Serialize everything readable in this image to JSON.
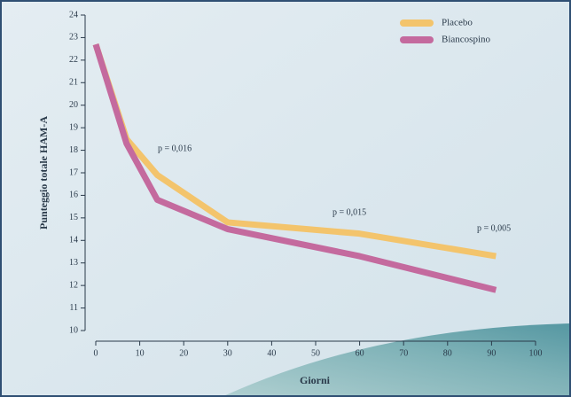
{
  "chart_data": {
    "type": "line",
    "y_label": "Punteggio totale HAM-A",
    "x_label": "Giorni",
    "series": [
      {
        "name": "Placebo",
        "color": "#f3c46c",
        "x": [
          0,
          7,
          14,
          30,
          60,
          91
        ],
        "values": [
          22.7,
          18.5,
          16.9,
          14.8,
          14.3,
          13.3
        ]
      },
      {
        "name": "Biancospino",
        "color": "#c46a9e",
        "x": [
          0,
          7,
          14,
          30,
          60,
          91
        ],
        "values": [
          22.7,
          18.3,
          15.8,
          14.5,
          13.3,
          11.8
        ]
      }
    ],
    "annotations": [
      "p = 0,016",
      "p = 0,015",
      "p = 0,005"
    ],
    "xlim": [
      0,
      100
    ],
    "xticks": [
      0,
      10,
      20,
      30,
      40,
      50,
      60,
      70,
      80,
      90,
      100
    ],
    "ylim": [
      10,
      24
    ],
    "yticks": [
      10,
      11,
      12,
      13,
      14,
      15,
      16,
      17,
      18,
      19,
      20,
      21,
      22,
      23,
      24
    ],
    "legend": "top-right",
    "grid": false
  }
}
